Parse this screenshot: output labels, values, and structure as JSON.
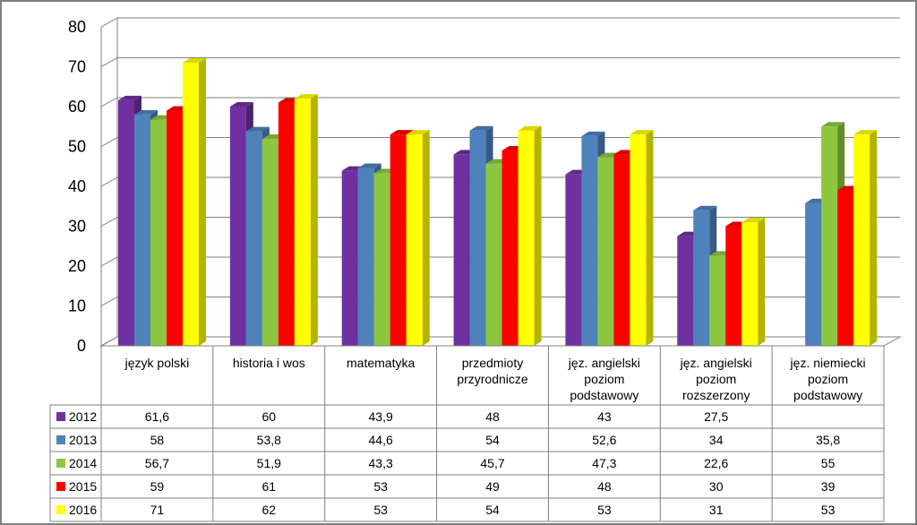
{
  "chart_data": {
    "type": "bar",
    "categories": [
      [
        "język polski"
      ],
      [
        "historia i wos"
      ],
      [
        "matematyka"
      ],
      [
        "przedmioty",
        "przyrodnicze"
      ],
      [
        "jęz. angielski",
        "poziom",
        "podstawowy"
      ],
      [
        "jęz. angielski",
        "poziom",
        "rozszerzony"
      ],
      [
        "jęz. niemiecki",
        "poziom",
        "podstawowy"
      ]
    ],
    "ylim": [
      0,
      80
    ],
    "yticks": [
      0,
      10,
      20,
      30,
      40,
      50,
      60,
      70,
      80
    ],
    "grid": true,
    "legend": "data-table",
    "series": [
      {
        "name": "2012",
        "color": "#7030A0",
        "values": [
          61.6,
          60,
          43.9,
          48,
          43,
          27.5,
          null
        ],
        "labels": [
          "61,6",
          "60",
          "43,9",
          "48",
          "43",
          "27,5",
          ""
        ]
      },
      {
        "name": "2013",
        "color": "#4F81BD",
        "values": [
          58,
          53.8,
          44.6,
          54,
          52.6,
          34,
          35.8
        ],
        "labels": [
          "58",
          "53,8",
          "44,6",
          "54",
          "52,6",
          "34",
          "35,8"
        ]
      },
      {
        "name": "2014",
        "color": "#8DC63F",
        "values": [
          56.7,
          51.9,
          43.3,
          45.7,
          47.3,
          22.6,
          55
        ],
        "labels": [
          "56,7",
          "51,9",
          "43,3",
          "45,7",
          "47,3",
          "22,6",
          "55"
        ]
      },
      {
        "name": "2015",
        "color": "#FF0000",
        "values": [
          59,
          61,
          53,
          49,
          48,
          30,
          39
        ],
        "labels": [
          "59",
          "61",
          "53",
          "49",
          "48",
          "30",
          "39"
        ]
      },
      {
        "name": "2016",
        "color": "#FFFF00",
        "values": [
          71,
          62,
          53,
          54,
          53,
          31,
          53
        ],
        "labels": [
          "71",
          "62",
          "53",
          "54",
          "53",
          "31",
          "53"
        ]
      }
    ]
  }
}
